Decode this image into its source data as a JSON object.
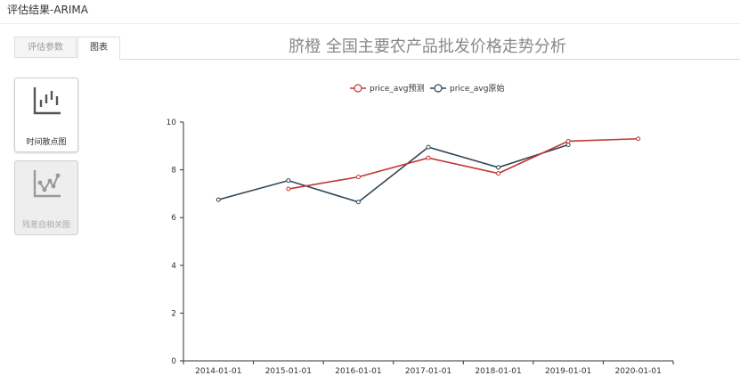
{
  "window": {
    "title": "评估结果-ARIMA"
  },
  "tabs": [
    {
      "label": "评估参数",
      "active": false
    },
    {
      "label": "图表",
      "active": true
    }
  ],
  "page_title": "脐橙  全国主要农产品批发价格走势分析",
  "sidebar": {
    "items": [
      {
        "label": "时间散点图",
        "icon": "scatter-chart-icon",
        "active": true
      },
      {
        "label": "残差自相关图",
        "icon": "line-chart-icon",
        "active": false
      }
    ]
  },
  "colors": {
    "predicted": "#c23531",
    "original": "#2f4554",
    "axis": "#333333"
  },
  "chart_data": {
    "type": "line",
    "title": "",
    "xlabel": "",
    "ylabel": "",
    "categories": [
      "2014-01-01",
      "2015-01-01",
      "2016-01-01",
      "2017-01-01",
      "2018-01-01",
      "2019-01-01",
      "2020-01-01"
    ],
    "x_ticks": [
      "2014-01-01",
      "2015-01-01",
      "2016-01-01",
      "2017-01-01",
      "2018-01-01",
      "2019-01-01",
      "2020-01-01"
    ],
    "y_ticks": [
      "0",
      "2",
      "4",
      "6",
      "8",
      "10"
    ],
    "ylim": [
      0,
      10
    ],
    "grid": false,
    "legend_position": "top-center",
    "series": [
      {
        "name": "price_avg预测",
        "color": "#c23531",
        "values": [
          null,
          7.2,
          7.7,
          8.5,
          7.85,
          9.2,
          9.3
        ]
      },
      {
        "name": "price_avg原始",
        "color": "#2f4554",
        "values": [
          6.75,
          7.55,
          6.65,
          8.95,
          8.1,
          9.05,
          null
        ]
      }
    ]
  }
}
